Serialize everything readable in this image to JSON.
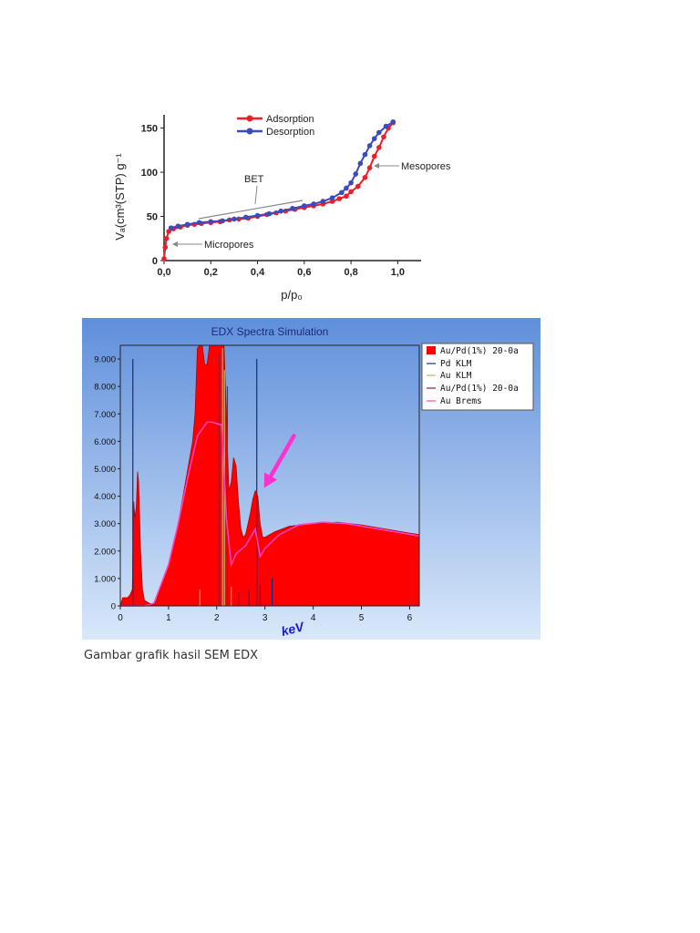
{
  "caption": "Gambar grafik hasil SEM EDX",
  "chart_data": [
    {
      "type": "line",
      "title": "",
      "xlabel": "p/p₀",
      "ylabel": "Vₐ(cm³(STP) g⁻¹",
      "xlim": [
        0,
        1.1
      ],
      "ylim": [
        0,
        165
      ],
      "xticks": [
        "0,0",
        "0,2",
        "0,4",
        "0,6",
        "0,8",
        "1,0"
      ],
      "xtick_values": [
        0,
        0.2,
        0.4,
        0.6,
        0.8,
        1.0
      ],
      "yticks": [
        "0",
        "50",
        "100",
        "150"
      ],
      "ytick_values": [
        0,
        50,
        100,
        150
      ],
      "legend_position": "top-center",
      "series": [
        {
          "name": "Adsorption",
          "color": "#e8202a",
          "points": [
            [
              0.0,
              2
            ],
            [
              0.005,
              15
            ],
            [
              0.01,
              25
            ],
            [
              0.02,
              33
            ],
            [
              0.04,
              36
            ],
            [
              0.07,
              38
            ],
            [
              0.1,
              40
            ],
            [
              0.13,
              41
            ],
            [
              0.16,
              42
            ],
            [
              0.2,
              43
            ],
            [
              0.24,
              44
            ],
            [
              0.28,
              46
            ],
            [
              0.32,
              47
            ],
            [
              0.36,
              48
            ],
            [
              0.4,
              50
            ],
            [
              0.44,
              52
            ],
            [
              0.48,
              54
            ],
            [
              0.52,
              56
            ],
            [
              0.56,
              58
            ],
            [
              0.6,
              60
            ],
            [
              0.64,
              62
            ],
            [
              0.68,
              64
            ],
            [
              0.72,
              67
            ],
            [
              0.75,
              70
            ],
            [
              0.78,
              73
            ],
            [
              0.8,
              78
            ],
            [
              0.83,
              84
            ],
            [
              0.86,
              94
            ],
            [
              0.88,
              105
            ],
            [
              0.9,
              118
            ],
            [
              0.92,
              128
            ],
            [
              0.94,
              140
            ],
            [
              0.96,
              150
            ],
            [
              0.98,
              156
            ]
          ]
        },
        {
          "name": "Desorption",
          "color": "#3a4bbd",
          "points": [
            [
              0.98,
              157
            ],
            [
              0.95,
              152
            ],
            [
              0.92,
              145
            ],
            [
              0.9,
              138
            ],
            [
              0.88,
              130
            ],
            [
              0.86,
              120
            ],
            [
              0.84,
              110
            ],
            [
              0.82,
              98
            ],
            [
              0.8,
              88
            ],
            [
              0.78,
              82
            ],
            [
              0.76,
              77
            ],
            [
              0.72,
              71
            ],
            [
              0.68,
              67
            ],
            [
              0.64,
              64
            ],
            [
              0.6,
              62
            ],
            [
              0.55,
              59
            ],
            [
              0.5,
              56
            ],
            [
              0.45,
              53
            ],
            [
              0.4,
              51
            ],
            [
              0.35,
              49
            ],
            [
              0.3,
              47
            ],
            [
              0.25,
              45
            ],
            [
              0.2,
              44
            ],
            [
              0.15,
              43
            ],
            [
              0.1,
              41
            ],
            [
              0.06,
              39
            ],
            [
              0.03,
              37
            ]
          ]
        }
      ],
      "annotations": [
        {
          "text": "BET"
        },
        {
          "text": "Mesopores"
        },
        {
          "text": "Micropores"
        }
      ]
    },
    {
      "type": "area",
      "title": "EDX Spectra Simulation",
      "xlabel": "keV",
      "ylabel": "",
      "xlim": [
        0,
        6.2
      ],
      "ylim": [
        0,
        9500
      ],
      "xticks": [
        "0",
        "1",
        "2",
        "3",
        "4",
        "5",
        "6"
      ],
      "xtick_values": [
        0,
        1,
        2,
        3,
        4,
        5,
        6
      ],
      "yticks": [
        "0",
        "1.000",
        "2.000",
        "3.000",
        "4.000",
        "5.000",
        "6.000",
        "7.000",
        "8.000",
        "9.000"
      ],
      "ytick_values": [
        0,
        1000,
        2000,
        3000,
        4000,
        5000,
        6000,
        7000,
        8000,
        9000
      ],
      "grid": false,
      "legend_position": "right",
      "legend": [
        {
          "name": "Au/Pd(1%) 20-0a",
          "color": "#ff0000",
          "kind": "fill"
        },
        {
          "name": "Pd KLM",
          "color": "#1a2a80",
          "kind": "line"
        },
        {
          "name": "Au KLM",
          "color": "#c8b070",
          "kind": "line"
        },
        {
          "name": "Au/Pd(1%) 20-0a",
          "color": "#8a2030",
          "kind": "line"
        },
        {
          "name": "Au Brems",
          "color": "#ff40c0",
          "kind": "line"
        }
      ],
      "series": [
        {
          "name": "Au/Pd(1%) 20-0a",
          "color": "#ff0000",
          "points": [
            [
              0.0,
              0
            ],
            [
              0.05,
              300
            ],
            [
              0.15,
              300
            ],
            [
              0.2,
              400
            ],
            [
              0.25,
              600
            ],
            [
              0.28,
              3800
            ],
            [
              0.3,
              3200
            ],
            [
              0.33,
              3600
            ],
            [
              0.36,
              4900
            ],
            [
              0.38,
              4500
            ],
            [
              0.42,
              2000
            ],
            [
              0.46,
              600
            ],
            [
              0.5,
              200
            ],
            [
              0.6,
              100
            ],
            [
              0.7,
              50
            ],
            [
              0.75,
              200
            ],
            [
              0.8,
              500
            ],
            [
              0.9,
              1000
            ],
            [
              1.0,
              1500
            ],
            [
              1.1,
              2200
            ],
            [
              1.2,
              3000
            ],
            [
              1.3,
              4000
            ],
            [
              1.4,
              5000
            ],
            [
              1.5,
              6000
            ],
            [
              1.55,
              7000
            ],
            [
              1.6,
              9400
            ],
            [
              1.65,
              9500
            ],
            [
              1.7,
              9500
            ],
            [
              1.75,
              8800
            ],
            [
              1.8,
              8800
            ],
            [
              1.85,
              9500
            ],
            [
              1.9,
              9500
            ],
            [
              2.0,
              9500
            ],
            [
              2.1,
              9500
            ],
            [
              2.15,
              9500
            ],
            [
              2.2,
              7000
            ],
            [
              2.25,
              4200
            ],
            [
              2.3,
              4500
            ],
            [
              2.35,
              5400
            ],
            [
              2.4,
              5100
            ],
            [
              2.45,
              3800
            ],
            [
              2.5,
              2800
            ],
            [
              2.55,
              2500
            ],
            [
              2.6,
              2600
            ],
            [
              2.7,
              3400
            ],
            [
              2.75,
              3900
            ],
            [
              2.8,
              4200
            ],
            [
              2.85,
              4000
            ],
            [
              2.9,
              3000
            ],
            [
              2.95,
              2500
            ],
            [
              3.0,
              2500
            ],
            [
              3.2,
              2700
            ],
            [
              3.5,
              2900
            ],
            [
              4.0,
              3000
            ],
            [
              4.5,
              3050
            ],
            [
              5.0,
              2950
            ],
            [
              5.5,
              2800
            ],
            [
              6.0,
              2650
            ],
            [
              6.2,
              2600
            ]
          ]
        },
        {
          "name": "Au Brems",
          "color": "#ff40c0",
          "points": [
            [
              0.0,
              0
            ],
            [
              0.5,
              0
            ],
            [
              0.7,
              100
            ],
            [
              1.0,
              1500
            ],
            [
              1.2,
              3000
            ],
            [
              1.4,
              4700
            ],
            [
              1.6,
              6200
            ],
            [
              1.8,
              6700
            ],
            [
              1.9,
              6700
            ],
            [
              2.1,
              6600
            ],
            [
              2.2,
              3200
            ],
            [
              2.3,
              1500
            ],
            [
              2.4,
              1900
            ],
            [
              2.6,
              2200
            ],
            [
              2.8,
              2800
            ],
            [
              2.9,
              1800
            ],
            [
              3.0,
              2100
            ],
            [
              3.3,
              2600
            ],
            [
              3.7,
              2950
            ],
            [
              4.2,
              3050
            ],
            [
              4.7,
              3000
            ],
            [
              5.2,
              2850
            ],
            [
              5.7,
              2700
            ],
            [
              6.2,
              2550
            ]
          ]
        }
      ],
      "lines": [
        {
          "name": "Pd KLM",
          "color": "#1a2a80",
          "x": [
            0.26,
            2.83,
            2.9,
            3.15,
            2.67,
            2.45
          ],
          "y": [
            9000,
            9000,
            800,
            1000,
            600,
            500
          ]
        },
        {
          "name": "Au KLM",
          "color": "#c8b070",
          "x": [
            2.12,
            2.16,
            1.65,
            2.3
          ],
          "y": [
            9400,
            8600,
            600,
            700
          ]
        },
        {
          "name": "Au/Pd(1%) 20-0a",
          "color": "#8a2030",
          "x": [
            2.05,
            2.22
          ],
          "y": [
            9200,
            8000
          ]
        }
      ],
      "annotation": {
        "type": "arrow",
        "color": "#ff30d0",
        "x_from": 3.6,
        "y_from": 6200,
        "x_to": 2.98,
        "y_to": 4300
      }
    }
  ]
}
